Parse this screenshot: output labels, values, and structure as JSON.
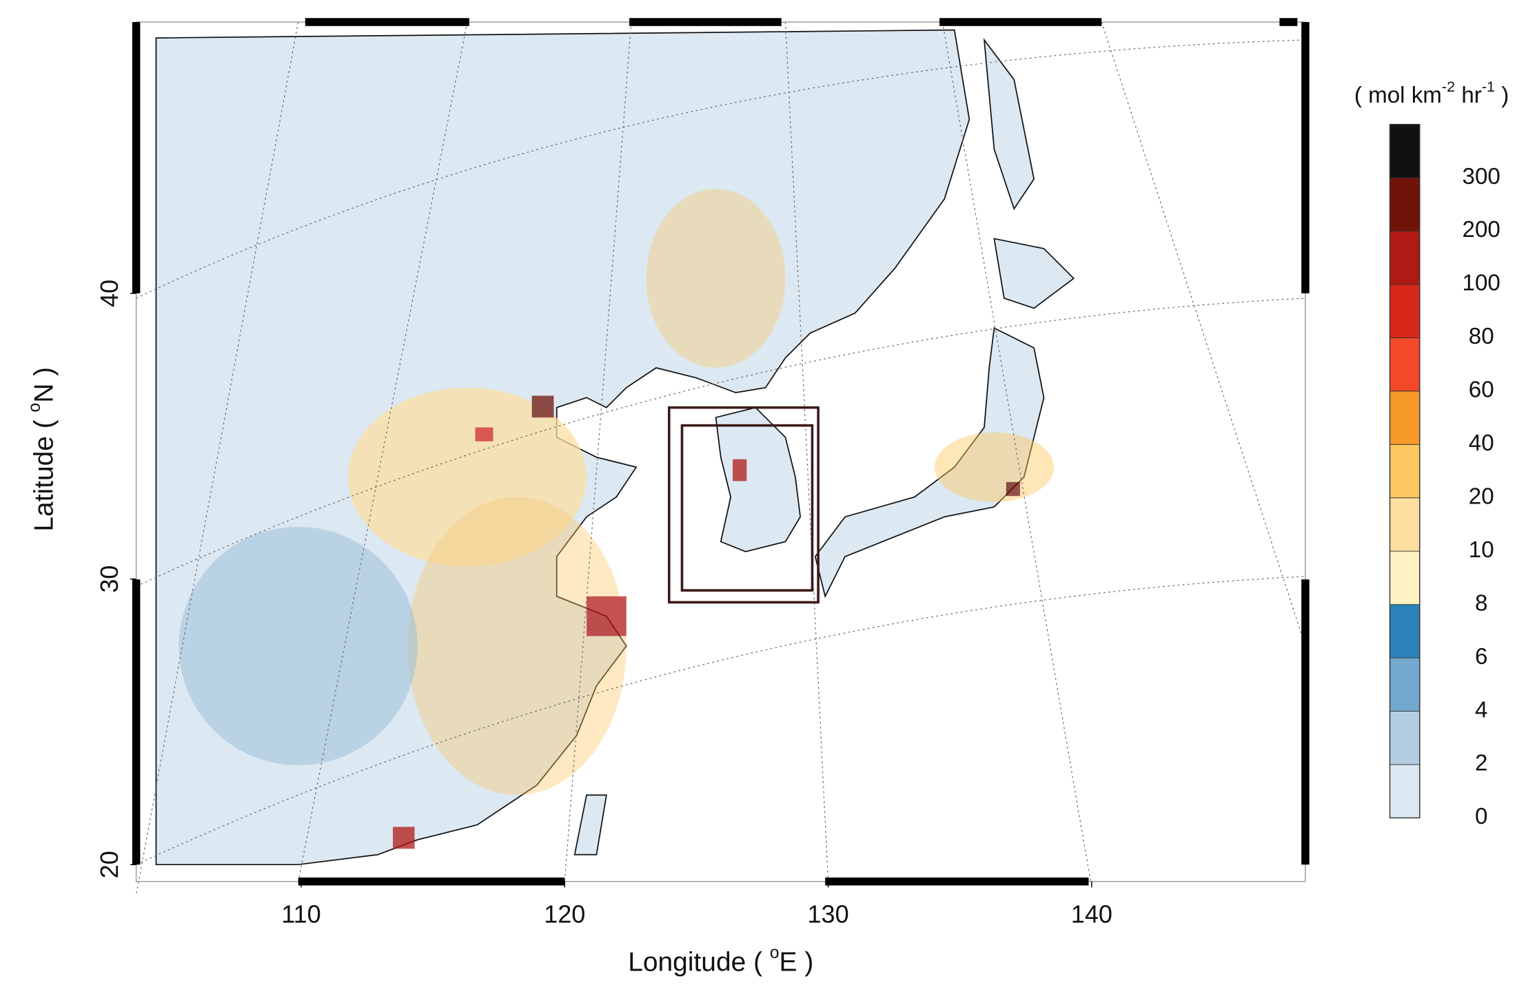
{
  "axes": {
    "x_label": [
      "Longitude ( ",
      "o",
      "E )"
    ],
    "y_label": [
      "Latitude ( ",
      "o",
      "N )"
    ],
    "xlim": [
      103.74,
      148.11
    ],
    "ylim": [
      19.41,
      49.5
    ],
    "xticks": [
      110,
      120,
      130,
      140
    ],
    "yticks": [
      20,
      30,
      40
    ]
  },
  "colorbar": {
    "units": [
      "( mol km",
      "-2",
      " hr",
      "-1",
      " )"
    ],
    "levels": [
      0,
      2,
      4,
      6,
      8,
      10,
      20,
      40,
      60,
      80,
      100,
      200,
      300
    ],
    "colors": [
      "#dce8f2",
      "#b3cde3",
      "#74a9cf",
      "#2b83ba",
      "#fff2c2",
      "#fddfa0",
      "#fec65f",
      "#f89a2a",
      "#f4482a",
      "#d8281a",
      "#b11a14",
      "#701409",
      "#111111"
    ]
  }
}
